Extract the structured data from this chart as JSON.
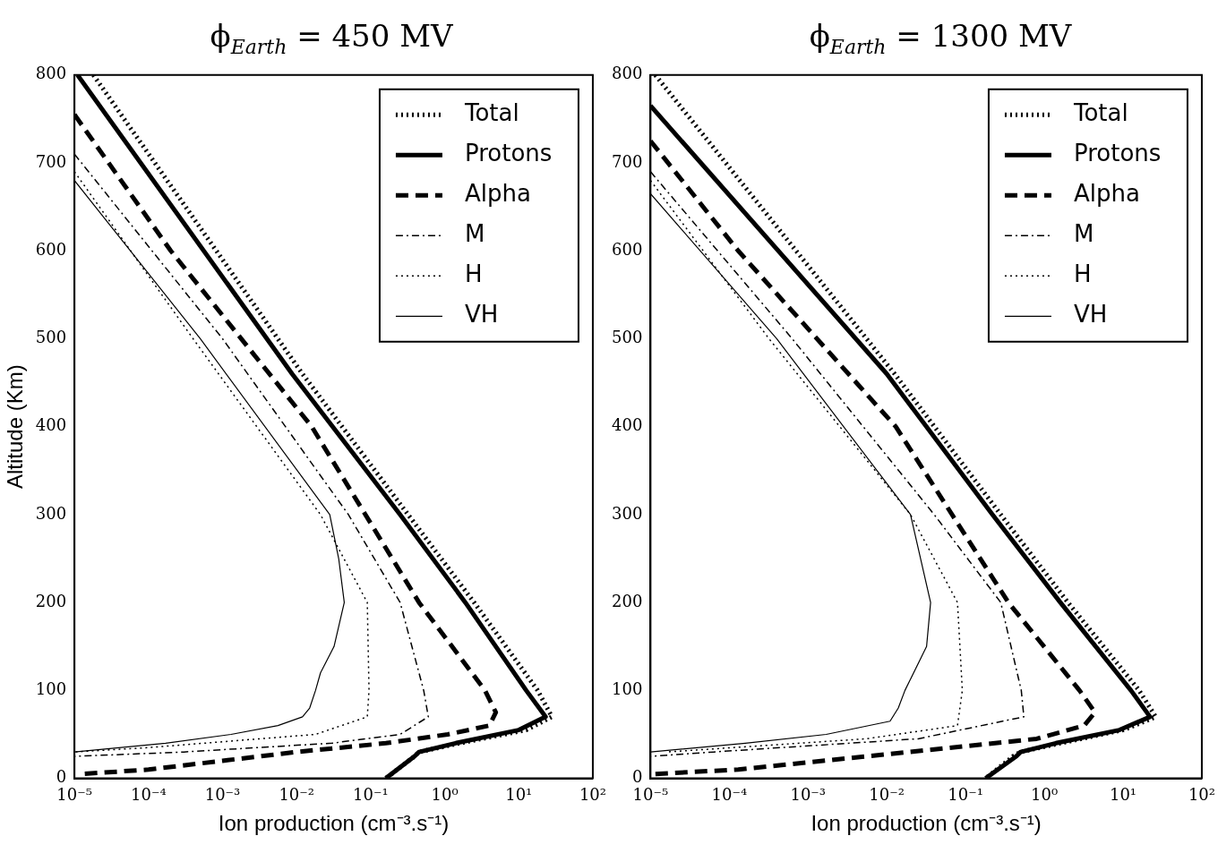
{
  "chart_data": [
    {
      "type": "line",
      "title": "ϕ$_{Earth}$ = 450 MV",
      "xlabel": "Ion production (cm⁻³.s⁻¹)",
      "ylabel": "Altitude (Km)",
      "log": "x",
      "grid": false,
      "legend": "top right",
      "marker": "none",
      "xlim": [
        1e-05,
        100
      ],
      "xticks": [
        {
          "value": 1e-05,
          "label": "10⁻⁵"
        },
        {
          "value": 0.0001,
          "label": "10⁻⁴"
        },
        {
          "value": 0.001,
          "label": "10⁻³"
        },
        {
          "value": 0.01,
          "label": "10⁻²"
        },
        {
          "value": 0.1,
          "label": "10⁻¹"
        },
        {
          "value": 1,
          "label": "10⁰"
        },
        {
          "value": 10,
          "label": "10¹"
        },
        {
          "value": 100,
          "label": "10²"
        }
      ],
      "ylim": [
        0,
        800
      ],
      "yticks": [
        0,
        100,
        200,
        300,
        400,
        500,
        600,
        700,
        800
      ],
      "series": [
        {
          "name": "Total",
          "color": "#000000",
          "line_style": "dotted",
          "x": [
            1.8e-05,
            0.012,
            0.32,
            2.5,
            18,
            28,
            12.6,
            1.6,
            0.45,
            0.39,
            0.16
          ],
          "values": [
            800,
            460,
            300,
            200,
            100,
            70,
            55,
            40,
            30,
            25,
            0
          ]
        },
        {
          "name": "Protons",
          "color": "#000000",
          "line_style": "solid",
          "x": [
            1.1e-05,
            0.0087,
            0.25,
            1.9,
            12.6,
            23,
            10,
            1.4,
            0.45,
            0.39,
            0.16
          ],
          "values": [
            800,
            460,
            300,
            200,
            100,
            70,
            55,
            40,
            30,
            25,
            0
          ]
        },
        {
          "name": "Alpha",
          "color": "#000000",
          "line_style": "dashed",
          "x": [
            1e-05,
            0.0002,
            0.016,
            0.45,
            3.5,
            4.9,
            4,
            1.1,
            0.16,
            0.01,
            0.001,
            0.0001,
            1.3e-05
          ],
          "values": [
            755,
            600,
            400,
            200,
            100,
            75,
            60,
            50,
            40,
            30,
            20,
            10,
            5
          ]
        },
        {
          "name": "M",
          "color": "#000000",
          "line_style": "dashdot",
          "x": [
            1e-05,
            0.001,
            0.05,
            0.25,
            0.52,
            0.6,
            0.25,
            0.03,
            0.0003,
            1e-05
          ],
          "values": [
            710,
            500,
            300,
            200,
            100,
            70,
            50,
            40,
            30,
            25
          ]
        },
        {
          "name": "H",
          "color": "#000000",
          "line_style": "dotted",
          "x": [
            1e-05,
            0.0004,
            0.021,
            0.09,
            0.095,
            0.09,
            0.018,
            0.0001,
            1e-05
          ],
          "values": [
            690,
            500,
            300,
            200,
            100,
            70,
            50,
            35,
            30
          ]
        },
        {
          "name": "VH",
          "color": "#000000",
          "line_style": "solid",
          "x": [
            1e-05,
            0.0005,
            0.028,
            0.037,
            0.044,
            0.032,
            0.021,
            0.018,
            0.015,
            0.012,
            0.0056,
            0.0013,
            0.00017,
            1e-05
          ],
          "values": [
            680,
            500,
            300,
            250,
            200,
            150,
            120,
            100,
            80,
            70,
            60,
            50,
            40,
            30
          ]
        }
      ]
    },
    {
      "type": "line",
      "title": "ϕ$_{Earth}$ = 1300 MV",
      "xlabel": "Ion production (cm⁻³.s⁻¹)",
      "log": "x",
      "grid": false,
      "legend": "top right",
      "marker": "none",
      "xlim": [
        1e-05,
        100
      ],
      "xticks": [
        {
          "value": 1e-05,
          "label": "10⁻⁵"
        },
        {
          "value": 0.0001,
          "label": "10⁻⁴"
        },
        {
          "value": 0.001,
          "label": "10⁻³"
        },
        {
          "value": 0.01,
          "label": "10⁻²"
        },
        {
          "value": 0.1,
          "label": "10⁻¹"
        },
        {
          "value": 1,
          "label": "10⁰"
        },
        {
          "value": 10,
          "label": "10¹"
        },
        {
          "value": 100,
          "label": "10²"
        }
      ],
      "ylim": [
        0,
        800
      ],
      "yticks": [
        0,
        100,
        200,
        300,
        400,
        500,
        600,
        700,
        800
      ],
      "series": [
        {
          "name": "Total",
          "color": "#000000",
          "line_style": "dotted",
          "x": [
            1.15e-05,
            0.0126,
            0.28,
            2,
            16,
            26,
            10,
            1.6,
            0.5,
            0.4,
            0.18
          ],
          "values": [
            800,
            460,
            300,
            200,
            100,
            70,
            55,
            40,
            30,
            25,
            0
          ]
        },
        {
          "name": "Protons",
          "color": "#000000",
          "line_style": "solid",
          "x": [
            1e-05,
            0.01,
            0.22,
            1.6,
            12.6,
            22,
            9,
            1.4,
            0.5,
            0.44,
            0.18
          ],
          "values": [
            765,
            460,
            300,
            200,
            100,
            70,
            55,
            40,
            30,
            25,
            0
          ]
        },
        {
          "name": "Alpha",
          "color": "#000000",
          "line_style": "dashed",
          "x": [
            1e-05,
            0.00013,
            0.013,
            0.35,
            2.8,
            4.4,
            3.2,
            0.8,
            0.0055,
            0.00013,
            1.15e-05
          ],
          "values": [
            725,
            600,
            400,
            200,
            100,
            75,
            60,
            45,
            25,
            10,
            5
          ]
        },
        {
          "name": "M",
          "color": "#000000",
          "line_style": "dashdot",
          "x": [
            1e-05,
            0.00063,
            0.04,
            0.28,
            0.51,
            0.55,
            0.025,
            6.3e-05,
            1e-05
          ],
          "values": [
            690,
            500,
            300,
            200,
            100,
            70,
            45,
            30,
            25
          ]
        },
        {
          "name": "H",
          "color": "#000000",
          "line_style": "dotted",
          "x": [
            1e-05,
            0.00032,
            0.02,
            0.079,
            0.091,
            0.079,
            0.0055,
            1.6e-05
          ],
          "values": [
            680,
            500,
            300,
            200,
            100,
            60,
            45,
            30
          ]
        },
        {
          "name": "VH",
          "color": "#000000",
          "line_style": "solid",
          "x": [
            1e-05,
            0.0004,
            0.02,
            0.036,
            0.032,
            0.017,
            0.014,
            0.011,
            0.0017,
            0.00016,
            1e-05
          ],
          "values": [
            665,
            500,
            300,
            200,
            150,
            100,
            80,
            65,
            50,
            40,
            30
          ]
        }
      ]
    }
  ]
}
